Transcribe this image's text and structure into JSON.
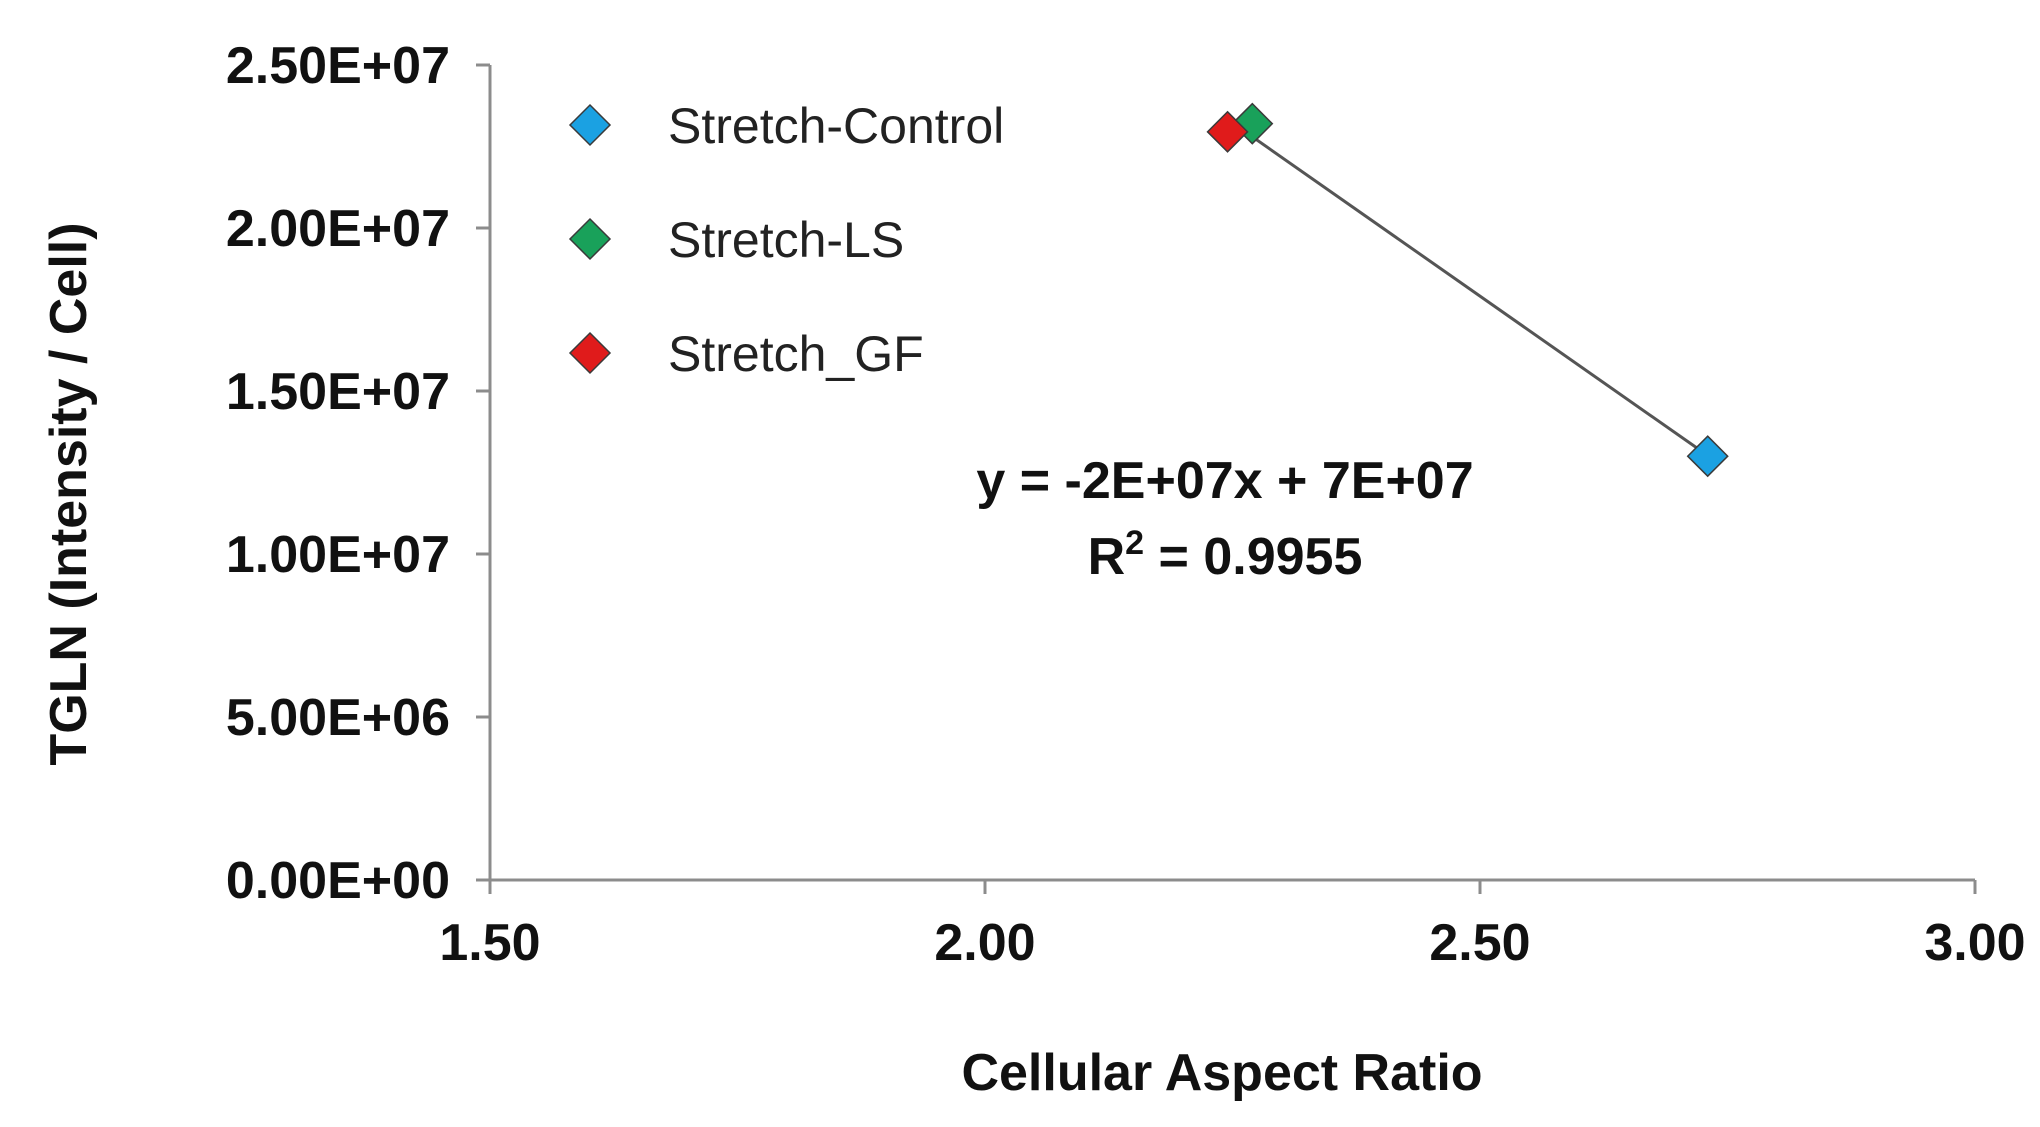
{
  "chart_data": {
    "type": "scatter",
    "xlabel": "Cellular Aspect Ratio",
    "ylabel": "TGLN (Intensity / Cell)",
    "xlim": [
      1.5,
      3.0
    ],
    "ylim": [
      0,
      25000000
    ],
    "x_ticks": [
      "1.50",
      "2.00",
      "2.50",
      "3.00"
    ],
    "y_ticks": [
      "0.00E+00",
      "5.00E+06",
      "1.00E+07",
      "1.50E+07",
      "2.00E+07",
      "2.50E+07"
    ],
    "grid": false,
    "legend_position": "top-left",
    "series": [
      {
        "name": "Stretch-Control",
        "color": "#1ba1e2",
        "marker": "diamond",
        "x": [
          2.73
        ],
        "y": [
          13000000
        ]
      },
      {
        "name": "Stretch-LS",
        "color": "#19a15a",
        "marker": "diamond",
        "x": [
          2.27
        ],
        "y": [
          23200000
        ]
      },
      {
        "name": "Stretch_GF",
        "color": "#e01b1b",
        "marker": "diamond",
        "x": [
          2.245
        ],
        "y": [
          22950000
        ]
      }
    ],
    "trendline": {
      "type": "linear",
      "color": "#555555",
      "x_range": [
        2.245,
        2.73
      ],
      "equation": "y = -2E+07x + 7E+07",
      "r_squared_prefix": "R",
      "r_squared_exponent": "2",
      "r_squared_value": " = 0.9955"
    }
  }
}
